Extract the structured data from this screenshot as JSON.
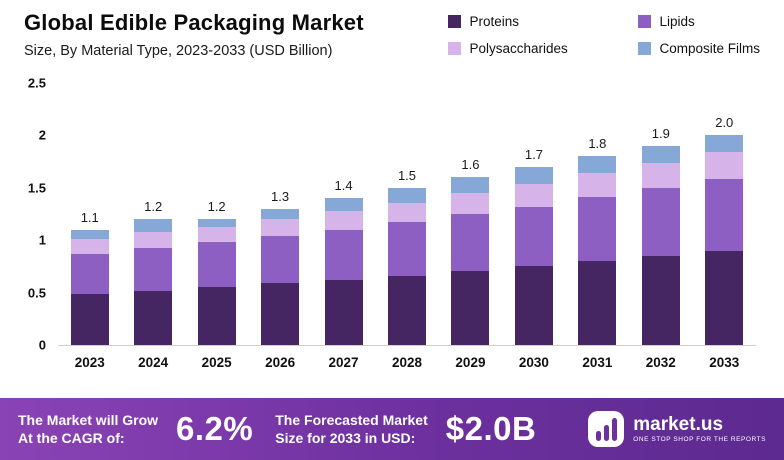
{
  "header": {
    "title": "Global Edible Packaging Market",
    "subtitle": "Size, By Material Type, 2023-2033 (USD Billion)"
  },
  "legend": [
    {
      "label": "Proteins",
      "color": "#452663"
    },
    {
      "label": "Lipids",
      "color": "#8d5fc2"
    },
    {
      "label": "Polysaccharides",
      "color": "#d6b3e9"
    },
    {
      "label": "Composite Films",
      "color": "#85a8d6"
    }
  ],
  "chart_data": {
    "type": "bar",
    "stacked": true,
    "title": "Global Edible Packaging Market",
    "subtitle": "Size, By Material Type, 2023-2033 (USD Billion)",
    "xlabel": "",
    "ylabel": "",
    "ylim": [
      0,
      2.5
    ],
    "yticks": [
      0,
      0.5,
      1,
      1.5,
      2,
      2.5
    ],
    "ytick_labels": [
      "0",
      "0.5",
      "1",
      "1.5",
      "2",
      "2.5"
    ],
    "grid": false,
    "legend_position": "top-right",
    "categories": [
      "2023",
      "2024",
      "2025",
      "2026",
      "2027",
      "2028",
      "2029",
      "2030",
      "2031",
      "2032",
      "2033"
    ],
    "series": [
      {
        "name": "Proteins",
        "color": "#452663",
        "values": [
          0.49,
          0.52,
          0.55,
          0.59,
          0.62,
          0.66,
          0.71,
          0.75,
          0.8,
          0.85,
          0.9
        ]
      },
      {
        "name": "Lipids",
        "color": "#8d5fc2",
        "values": [
          0.38,
          0.41,
          0.43,
          0.45,
          0.48,
          0.51,
          0.54,
          0.57,
          0.61,
          0.65,
          0.68
        ]
      },
      {
        "name": "Polysaccharides",
        "color": "#d6b3e9",
        "values": [
          0.14,
          0.15,
          0.15,
          0.16,
          0.18,
          0.19,
          0.2,
          0.22,
          0.23,
          0.24,
          0.26
        ]
      },
      {
        "name": "Composite Films",
        "color": "#85a8d6",
        "values": [
          0.09,
          0.12,
          0.07,
          0.1,
          0.12,
          0.14,
          0.15,
          0.16,
          0.16,
          0.16,
          0.16
        ]
      }
    ],
    "totals": [
      "1.1",
      "1.2",
      "1.2",
      "1.3",
      "1.4",
      "1.5",
      "1.6",
      "1.7",
      "1.8",
      "1.9",
      "2.0"
    ]
  },
  "banner": {
    "cagr_label_line1": "The Market will Grow",
    "cagr_label_line2": "At the CAGR of:",
    "cagr_value": "6.2%",
    "forecast_label_line1": "The Forecasted Market",
    "forecast_label_line2": "Size for 2033 in USD:",
    "forecast_value": "$2.0B",
    "brand_name": "market.us",
    "brand_tagline": "ONE STOP SHOP FOR THE REPORTS"
  }
}
